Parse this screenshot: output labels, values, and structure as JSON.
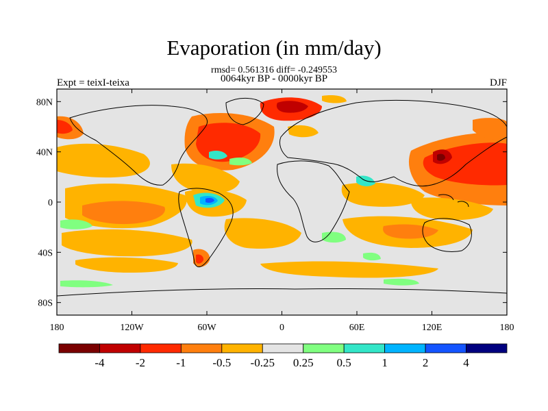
{
  "title": "Evaporation (in mm/day)",
  "stats_line": "rmsd= 0.561316 diff= -0.249553",
  "period_line": "0064kyr BP - 0000kyr BP",
  "experiment_label": "Expt = teixI-teixa",
  "season_label": "DJF",
  "axes": {
    "lat_ticks": [
      "80N",
      "40N",
      "0",
      "40S",
      "80S"
    ],
    "lon_ticks": [
      "180",
      "120W",
      "60W",
      "0",
      "60E",
      "120E",
      "180"
    ]
  },
  "colorbar": {
    "labels": [
      "-4",
      "-2",
      "-1",
      "-0.5",
      "-0.25",
      "0.25",
      "0.5",
      "1",
      "2",
      "4"
    ],
    "colors": [
      "#7a0000",
      "#c00000",
      "#ff2a00",
      "#ff7f0e",
      "#ffb300",
      "#e4e4e4",
      "#80ff80",
      "#33e6c8",
      "#00b4ff",
      "#1454ff",
      "#00007f"
    ]
  },
  "palette": {
    "neutral": "#e4e4e4",
    "coast": "#000000"
  }
}
